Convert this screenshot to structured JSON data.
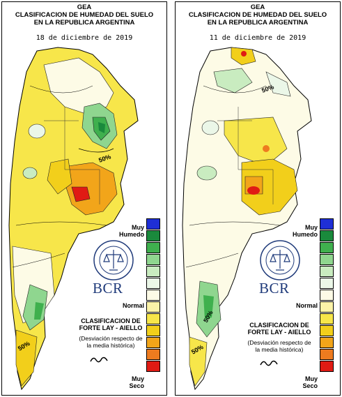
{
  "colors": {
    "muy_humedo_1": "#1f2fd6",
    "humedo_2": "#1a8a3c",
    "humedo_3": "#3fb04e",
    "humedo_4": "#8fd68f",
    "humedo_5": "#c9ecc0",
    "normal_1": "#ebf7e8",
    "normal_2": "#fdfbe6",
    "seco_1": "#fbf3a8",
    "seco_2": "#f7e64a",
    "seco_3": "#f2cf1b",
    "seco_4": "#f2a51a",
    "seco_5": "#ee7b1f",
    "muy_seco": "#e01b14"
  },
  "panels": [
    {
      "title_line1": "GEA",
      "title_line2": "CLASIFICACION DE HUMEDAD DEL SUELO",
      "title_line3": "EN LA REPUBLICA ARGENTINA",
      "date": "18 de diciembre de 2019",
      "contour_label_1": "50%",
      "contour_label_2": "50%"
    },
    {
      "title_line1": "GEA",
      "title_line2": "CLASIFICACION DE HUMEDAD DEL SUELO",
      "title_line3": "EN LA REPUBLICA ARGENTINA",
      "date": "11 de diciembre de 2019",
      "contour_label_1": "50%",
      "contour_label_2": "50%",
      "contour_label_3": "50%"
    }
  ],
  "legend": {
    "top_label_1": "Muy",
    "top_label_2": "Humedo",
    "mid_label": "Normal",
    "bottom_label_1": "Muy",
    "bottom_label_2": "Seco"
  },
  "logo": {
    "ring_text": "BOLSA DE COMERCIO DE ROSARIO",
    "acronym": "BCR"
  },
  "classification": {
    "line1": "CLASIFICACION DE",
    "line2": "FORTE LAY - AIELLO",
    "desc1": "(Desviación respecto de",
    "desc2": "la media histórica)"
  }
}
